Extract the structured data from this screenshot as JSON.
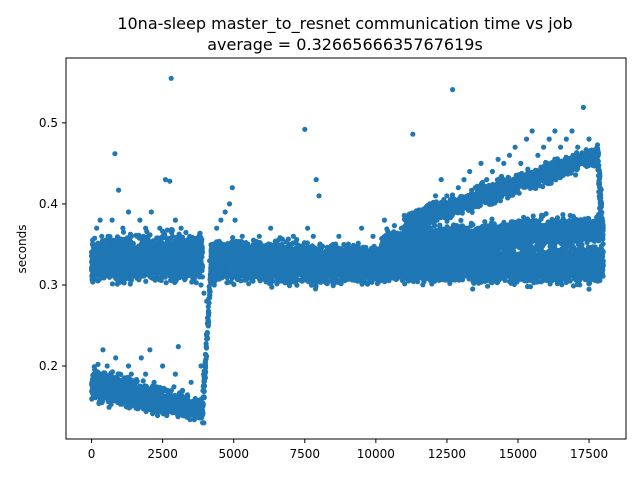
{
  "chart_data": {
    "type": "scatter",
    "title": "10na-sleep master_to_resnet communication time vs job",
    "subtitle": "average = 0.3266566635767619s",
    "xlabel": "",
    "ylabel": "seconds",
    "xlim": [
      -900,
      18800
    ],
    "ylim": [
      0.11,
      0.58
    ],
    "xticks": [
      0,
      2500,
      5000,
      7500,
      10000,
      12500,
      15000,
      17500
    ],
    "xtick_labels": [
      "0",
      "2500",
      "5000",
      "7500",
      "10000",
      "12500",
      "15000",
      "17500"
    ],
    "yticks": [
      0.2,
      0.3,
      0.4,
      0.5
    ],
    "ytick_labels": [
      "0.2",
      "0.3",
      "0.4",
      "0.5"
    ],
    "grid": false,
    "marker_color": "#1f77b4",
    "series": [
      {
        "name": "",
        "points": [
          [
            0,
            0.32
          ],
          [
            60,
            0.35
          ],
          [
            120,
            0.31
          ],
          [
            180,
            0.37
          ],
          [
            240,
            0.33
          ],
          [
            300,
            0.38
          ],
          [
            360,
            0.36
          ],
          [
            420,
            0.32
          ],
          [
            500,
            0.34
          ],
          [
            580,
            0.36
          ],
          [
            650,
            0.33
          ],
          [
            720,
            0.38
          ],
          [
            800,
            0.34
          ],
          [
            820,
            0.462
          ],
          [
            880,
            0.35
          ],
          [
            950,
            0.417
          ],
          [
            1000,
            0.33
          ],
          [
            1100,
            0.37
          ],
          [
            1200,
            0.35
          ],
          [
            1300,
            0.39
          ],
          [
            1400,
            0.36
          ],
          [
            1500,
            0.32
          ],
          [
            1600,
            0.36
          ],
          [
            1700,
            0.38
          ],
          [
            1800,
            0.34
          ],
          [
            1900,
            0.37
          ],
          [
            2000,
            0.36
          ],
          [
            2100,
            0.39
          ],
          [
            2200,
            0.35
          ],
          [
            2300,
            0.33
          ],
          [
            2400,
            0.37
          ],
          [
            2500,
            0.36
          ],
          [
            2600,
            0.43
          ],
          [
            2700,
            0.35
          ],
          [
            2750,
            0.428
          ],
          [
            2800,
            0.555
          ],
          [
            2850,
            0.36
          ],
          [
            2950,
            0.38
          ],
          [
            3050,
            0.34
          ],
          [
            3150,
            0.37
          ],
          [
            3250,
            0.35
          ],
          [
            3350,
            0.33
          ],
          [
            3450,
            0.36
          ],
          [
            3550,
            0.34
          ],
          [
            3650,
            0.33
          ],
          [
            3750,
            0.32
          ],
          [
            3800,
            0.31
          ],
          [
            3850,
            0.3
          ],
          [
            3900,
            0.31
          ],
          [
            3950,
            0.29
          ],
          [
            4050,
            0.28
          ],
          [
            4150,
            0.33
          ],
          [
            4250,
            0.35
          ],
          [
            4400,
            0.37
          ],
          [
            4550,
            0.38
          ],
          [
            4700,
            0.39
          ],
          [
            4850,
            0.4
          ],
          [
            4950,
            0.42
          ],
          [
            5050,
            0.38
          ],
          [
            5150,
            0.35
          ],
          [
            5300,
            0.36
          ],
          [
            5500,
            0.34
          ],
          [
            5700,
            0.33
          ],
          [
            5900,
            0.36
          ],
          [
            6100,
            0.33
          ],
          [
            6300,
            0.37
          ],
          [
            6500,
            0.34
          ],
          [
            6700,
            0.35
          ],
          [
            6900,
            0.32
          ],
          [
            7100,
            0.36
          ],
          [
            7300,
            0.34
          ],
          [
            7500,
            0.492
          ],
          [
            7600,
            0.37
          ],
          [
            7800,
            0.36
          ],
          [
            7900,
            0.43
          ],
          [
            8000,
            0.41
          ],
          [
            8100,
            0.34
          ],
          [
            8300,
            0.33
          ],
          [
            8500,
            0.35
          ],
          [
            8700,
            0.36
          ],
          [
            8900,
            0.33
          ],
          [
            9100,
            0.34
          ],
          [
            9300,
            0.32
          ],
          [
            9500,
            0.37
          ],
          [
            9700,
            0.33
          ],
          [
            9900,
            0.36
          ],
          [
            10100,
            0.34
          ],
          [
            10300,
            0.38
          ],
          [
            10500,
            0.35
          ],
          [
            10700,
            0.36
          ],
          [
            10900,
            0.37
          ],
          [
            11100,
            0.35
          ],
          [
            11300,
            0.486
          ],
          [
            11500,
            0.38
          ],
          [
            11700,
            0.39
          ],
          [
            11900,
            0.4
          ],
          [
            12100,
            0.41
          ],
          [
            12300,
            0.43
          ],
          [
            12500,
            0.41
          ],
          [
            12700,
            0.541
          ],
          [
            12900,
            0.42
          ],
          [
            13100,
            0.43
          ],
          [
            13300,
            0.44
          ],
          [
            13500,
            0.42
          ],
          [
            13700,
            0.45
          ],
          [
            13900,
            0.43
          ],
          [
            14100,
            0.44
          ],
          [
            14300,
            0.455
          ],
          [
            14500,
            0.45
          ],
          [
            14700,
            0.46
          ],
          [
            14900,
            0.47
          ],
          [
            15100,
            0.45
          ],
          [
            15300,
            0.48
          ],
          [
            15500,
            0.49
          ],
          [
            15700,
            0.46
          ],
          [
            15900,
            0.47
          ],
          [
            16100,
            0.48
          ],
          [
            16300,
            0.49
          ],
          [
            16500,
            0.47
          ],
          [
            16700,
            0.48
          ],
          [
            16900,
            0.49
          ],
          [
            17100,
            0.47
          ],
          [
            17300,
            0.519
          ],
          [
            17500,
            0.48
          ],
          [
            17700,
            0.45
          ],
          [
            17900,
            0.4
          ],
          [
            250,
            0.18
          ],
          [
            400,
            0.22
          ],
          [
            550,
            0.2
          ],
          [
            700,
            0.17
          ],
          [
            850,
            0.21
          ],
          [
            1000,
            0.19
          ],
          [
            1150,
            0.17
          ],
          [
            1300,
            0.2
          ],
          [
            1450,
            0.18
          ],
          [
            1600,
            0.16
          ],
          [
            1750,
            0.21
          ],
          [
            1900,
            0.19
          ],
          [
            2050,
            0.22
          ],
          [
            2200,
            0.18
          ],
          [
            2350,
            0.16
          ],
          [
            2500,
            0.2
          ],
          [
            2650,
            0.17
          ],
          [
            2800,
            0.15
          ],
          [
            2950,
            0.19
          ],
          [
            3050,
            0.224
          ],
          [
            3200,
            0.17
          ],
          [
            3350,
            0.15
          ],
          [
            3500,
            0.18
          ],
          [
            3650,
            0.16
          ],
          [
            3750,
            0.14
          ],
          [
            3850,
            0.2
          ],
          [
            3950,
            0.13
          ]
        ]
      }
    ],
    "bands": [
      {
        "x0": 0,
        "x1": 3900,
        "mid0": 0.33,
        "mid1": 0.335,
        "spread0": 0.022,
        "spread1": 0.025,
        "count": 2200
      },
      {
        "x0": 0,
        "x1": 3900,
        "mid0": 0.178,
        "mid1": 0.145,
        "spread0": 0.018,
        "spread1": 0.012,
        "count": 1500
      },
      {
        "x0": 3900,
        "x1": 4200,
        "mid0": 0.14,
        "mid1": 0.32,
        "spread0": 0.02,
        "spread1": 0.015,
        "count": 90
      },
      {
        "x0": 4200,
        "x1": 10200,
        "mid0": 0.33,
        "mid1": 0.325,
        "spread0": 0.022,
        "spread1": 0.02,
        "count": 4200
      },
      {
        "x0": 10200,
        "x1": 18000,
        "mid0": 0.325,
        "mid1": 0.325,
        "spread0": 0.018,
        "spread1": 0.02,
        "count": 3600
      },
      {
        "x0": 10200,
        "x1": 18000,
        "mid0": 0.35,
        "mid1": 0.37,
        "spread0": 0.015,
        "spread1": 0.015,
        "count": 2600
      },
      {
        "x0": 11000,
        "x1": 17800,
        "mid0": 0.375,
        "mid1": 0.46,
        "spread0": 0.012,
        "spread1": 0.012,
        "count": 1400
      },
      {
        "x0": 17800,
        "x1": 18000,
        "mid0": 0.46,
        "mid1": 0.35,
        "spread0": 0.02,
        "spread1": 0.03,
        "count": 60
      }
    ]
  }
}
